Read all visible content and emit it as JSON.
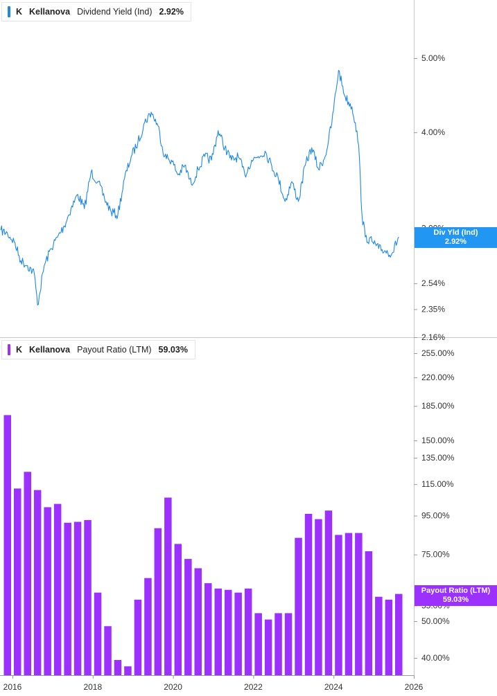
{
  "panels": {
    "top": {
      "ticker": "K",
      "company": "Kellanova",
      "metric": "Dividend Yield (Ind)",
      "value": "2.92%",
      "color": "#1e88e5",
      "tag_label": "Div Yld (Ind)",
      "tag_value": "2.92%",
      "y_ticks": [
        "5.00%",
        "4.00%",
        "3.00%",
        "2.54%",
        "2.35%",
        "2.16%"
      ]
    },
    "bottom": {
      "ticker": "K",
      "company": "Kellanova",
      "metric": "Payout Ratio (LTM)",
      "value": "59.03%",
      "color": "#9b30ff",
      "tag_label": "Payout Ratio (LTM)",
      "tag_value": "59.03%",
      "y_ticks": [
        "255.00%",
        "220.00%",
        "185.00%",
        "150.00%",
        "135.00%",
        "115.00%",
        "95.00%",
        "75.00%",
        "55.00%",
        "50.00%",
        "40.00%"
      ]
    }
  },
  "x_ticks": [
    "2016",
    "2018",
    "2020",
    "2022",
    "2024",
    "2026"
  ],
  "chart_data": [
    {
      "type": "line",
      "title": "Kellanova Dividend Yield (Ind)",
      "x_range": [
        "2015-09",
        "2026-02"
      ],
      "y_scale": "log",
      "ylim": [
        2.16,
        5.6
      ],
      "series": [
        {
          "name": "Dividend Yield (Ind)",
          "x": [
            "2015-09",
            "2015-11",
            "2016-01",
            "2016-03",
            "2016-05",
            "2016-07",
            "2016-08",
            "2016-10",
            "2016-12",
            "2017-02",
            "2017-04",
            "2017-06",
            "2017-08",
            "2017-10",
            "2017-12",
            "2018-02",
            "2018-04",
            "2018-06",
            "2018-08",
            "2018-10",
            "2018-12",
            "2019-02",
            "2019-04",
            "2019-06",
            "2019-08",
            "2019-10",
            "2019-12",
            "2020-02",
            "2020-04",
            "2020-06",
            "2020-08",
            "2020-10",
            "2020-12",
            "2021-02",
            "2021-04",
            "2021-06",
            "2021-08",
            "2021-10",
            "2021-12",
            "2022-02",
            "2022-04",
            "2022-06",
            "2022-08",
            "2022-10",
            "2022-12",
            "2023-02",
            "2023-04",
            "2023-06",
            "2023-08",
            "2023-10",
            "2023-12",
            "2024-02",
            "2024-04",
            "2024-06",
            "2024-07",
            "2024-08",
            "2024-09",
            "2024-10",
            "2024-12",
            "2025-02",
            "2025-04",
            "2025-06",
            "2025-08"
          ],
          "values": [
            2.98,
            2.95,
            2.88,
            2.72,
            2.68,
            2.62,
            2.38,
            2.68,
            2.82,
            2.92,
            3.02,
            3.18,
            3.32,
            3.18,
            3.55,
            3.45,
            3.28,
            3.15,
            3.12,
            3.48,
            3.72,
            3.88,
            4.12,
            4.25,
            4.08,
            3.72,
            3.68,
            3.52,
            3.62,
            3.42,
            3.58,
            3.72,
            3.68,
            4.02,
            3.82,
            3.68,
            3.72,
            3.52,
            3.68,
            3.72,
            3.78,
            3.62,
            3.48,
            3.25,
            3.45,
            3.25,
            3.62,
            3.82,
            3.58,
            3.72,
            4.12,
            4.82,
            4.45,
            4.32,
            4.12,
            3.85,
            3.12,
            2.92,
            2.88,
            2.82,
            2.8,
            2.78,
            2.92
          ]
        }
      ]
    },
    {
      "type": "bar",
      "title": "Kellanova Payout Ratio (LTM)",
      "y_scale": "log",
      "ylim": [
        35,
        270
      ],
      "categories": [
        "2015-Q4",
        "2016-Q1",
        "2016-Q2",
        "2016-Q3",
        "2016-Q4",
        "2017-Q1",
        "2017-Q2",
        "2017-Q3",
        "2017-Q4",
        "2018-Q1",
        "2018-Q2",
        "2018-Q3",
        "2018-Q4",
        "2019-Q1",
        "2019-Q2",
        "2019-Q3",
        "2019-Q4",
        "2020-Q1",
        "2020-Q2",
        "2020-Q3",
        "2020-Q4",
        "2021-Q1",
        "2021-Q2",
        "2021-Q3",
        "2021-Q4",
        "2022-Q1",
        "2022-Q2",
        "2022-Q3",
        "2022-Q4",
        "2023-Q1",
        "2023-Q2",
        "2023-Q3",
        "2023-Q4",
        "2024-Q1",
        "2024-Q2",
        "2024-Q3",
        "2024-Q4",
        "2025-Q1",
        "2025-Q2",
        "2025-Q3"
      ],
      "series": [
        {
          "name": "Payout Ratio (LTM)",
          "values": [
            175,
            112,
            124,
            111,
            100,
            102,
            91,
            91.5,
            92.5,
            59.5,
            48.5,
            39.5,
            38,
            57,
            65,
            88,
            106,
            80,
            73,
            69,
            63,
            61,
            60.5,
            59.5,
            61,
            52.5,
            50.5,
            52.5,
            52.5,
            83,
            96,
            93,
            98,
            84.5,
            85.5,
            85.5,
            76.5,
            58,
            57,
            59.03
          ]
        }
      ]
    }
  ]
}
